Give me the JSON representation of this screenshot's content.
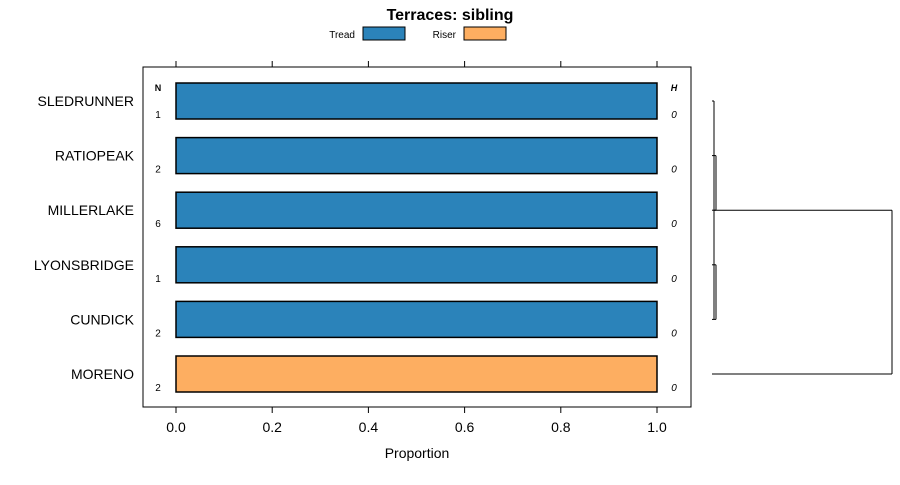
{
  "chart_data": {
    "type": "bar",
    "orientation": "horizontal",
    "stacked": true,
    "title": "Terraces: sibling",
    "xlabel": "Proportion",
    "xlim": [
      -0.07,
      1.07
    ],
    "xticks": [
      0.0,
      0.2,
      0.4,
      0.6,
      0.8,
      1.0
    ],
    "xtick_labels": [
      "0.0",
      "0.2",
      "0.4",
      "0.6",
      "0.8",
      "1.0"
    ],
    "legend_position": "top",
    "series": [
      {
        "name": "Tread",
        "color": "#2b83ba"
      },
      {
        "name": "Riser",
        "color": "#fdae61"
      }
    ],
    "n_label": "N",
    "h_label": "H",
    "categories": [
      {
        "name": "SLEDRUNNER",
        "n": "1",
        "h": "0",
        "values": [
          1,
          0
        ]
      },
      {
        "name": "RATIOPEAK",
        "n": "2",
        "h": "0",
        "values": [
          1,
          0
        ]
      },
      {
        "name": "MILLERLAKE",
        "n": "6",
        "h": "0",
        "values": [
          1,
          0
        ]
      },
      {
        "name": "LYONSBRIDGE",
        "n": "1",
        "h": "0",
        "values": [
          1,
          0
        ]
      },
      {
        "name": "CUNDICK",
        "n": "2",
        "h": "0",
        "values": [
          1,
          0
        ]
      },
      {
        "name": "MORENO",
        "n": "2",
        "h": "0",
        "values": [
          0,
          1
        ]
      }
    ],
    "dendrogram": true
  }
}
